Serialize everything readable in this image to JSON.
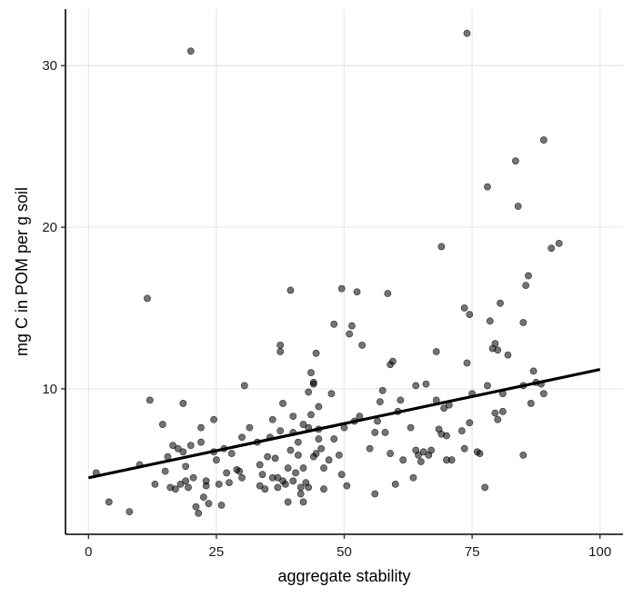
{
  "chart_data": {
    "type": "scatter",
    "xlabel": "aggregate stability",
    "ylabel": "mg C in POM per g soil",
    "xlim": [
      -4.5,
      104.5
    ],
    "ylim": [
      1.0,
      33.5
    ],
    "x_ticks": [
      0,
      25,
      50,
      75,
      100
    ],
    "x_tick_labels": [
      "0",
      "25",
      "50",
      "75",
      "100"
    ],
    "y_ticks": [
      10,
      20,
      30
    ],
    "y_tick_labels": [
      "10",
      "20",
      "30"
    ],
    "grid": true,
    "legend": "none",
    "colors": {
      "points": "#000000",
      "line": "#000000",
      "grid": "#ebebeb"
    },
    "trend_line": {
      "x": [
        0,
        100
      ],
      "y": [
        4.5,
        11.2
      ]
    },
    "points": [
      [
        1.5,
        4.8
      ],
      [
        4,
        3.0
      ],
      [
        8,
        2.4
      ],
      [
        10,
        5.3
      ],
      [
        11.5,
        15.6
      ],
      [
        12,
        9.3
      ],
      [
        13,
        4.1
      ],
      [
        14.5,
        7.8
      ],
      [
        15,
        4.9
      ],
      [
        15.5,
        5.8
      ],
      [
        16,
        3.9
      ],
      [
        16.5,
        6.5
      ],
      [
        17,
        3.8
      ],
      [
        17.5,
        6.3
      ],
      [
        18,
        4.1
      ],
      [
        18.5,
        9.1
      ],
      [
        18.5,
        6.1
      ],
      [
        19,
        5.2
      ],
      [
        19,
        4.3
      ],
      [
        19.5,
        3.9
      ],
      [
        20,
        6.5
      ],
      [
        20,
        30.9
      ],
      [
        20.5,
        4.5
      ],
      [
        21,
        2.7
      ],
      [
        21.5,
        2.3
      ],
      [
        22,
        7.6
      ],
      [
        22,
        6.7
      ],
      [
        22.5,
        3.3
      ],
      [
        23,
        4.3
      ],
      [
        23,
        4.0
      ],
      [
        23.5,
        2.9
      ],
      [
        24.5,
        8.1
      ],
      [
        24.5,
        6.1
      ],
      [
        25,
        5.6
      ],
      [
        25.5,
        4.1
      ],
      [
        26,
        2.8
      ],
      [
        26.5,
        6.3
      ],
      [
        27,
        4.8
      ],
      [
        27.5,
        4.2
      ],
      [
        28,
        6.0
      ],
      [
        29,
        5.0
      ],
      [
        29.5,
        4.9
      ],
      [
        30,
        4.5
      ],
      [
        30,
        7.0
      ],
      [
        30.5,
        10.2
      ],
      [
        31.5,
        7.6
      ],
      [
        33,
        6.7
      ],
      [
        33.5,
        4.0
      ],
      [
        33.5,
        5.3
      ],
      [
        34,
        4.7
      ],
      [
        34.5,
        3.8
      ],
      [
        35,
        5.8
      ],
      [
        35.5,
        7.0
      ],
      [
        36,
        4.5
      ],
      [
        36,
        8.1
      ],
      [
        36.5,
        5.7
      ],
      [
        37,
        3.9
      ],
      [
        37,
        4.5
      ],
      [
        37.5,
        7.4
      ],
      [
        37.5,
        12.3
      ],
      [
        37.5,
        12.7
      ],
      [
        38,
        4.3
      ],
      [
        38,
        9.1
      ],
      [
        38.5,
        4.1
      ],
      [
        39,
        3.0
      ],
      [
        39,
        5.1
      ],
      [
        39.5,
        16.1
      ],
      [
        39.5,
        6.2
      ],
      [
        40,
        8.3
      ],
      [
        40,
        7.3
      ],
      [
        40,
        4.3
      ],
      [
        40.5,
        4.8
      ],
      [
        41,
        6.7
      ],
      [
        41,
        5.9
      ],
      [
        41.5,
        3.5
      ],
      [
        41.5,
        3.9
      ],
      [
        42,
        5.1
      ],
      [
        42,
        7.8
      ],
      [
        42,
        3.0
      ],
      [
        42.5,
        4.2
      ],
      [
        43,
        9.8
      ],
      [
        43,
        7.6
      ],
      [
        43,
        3.9
      ],
      [
        43.5,
        11.0
      ],
      [
        43.5,
        8.4
      ],
      [
        44,
        5.8
      ],
      [
        44,
        10.3
      ],
      [
        44,
        10.4
      ],
      [
        44.5,
        6.0
      ],
      [
        44.5,
        12.2
      ],
      [
        45,
        8.9
      ],
      [
        45,
        6.9
      ],
      [
        45,
        7.5
      ],
      [
        45.5,
        6.3
      ],
      [
        46,
        3.8
      ],
      [
        46,
        5.1
      ],
      [
        47,
        5.6
      ],
      [
        47.5,
        9.7
      ],
      [
        48,
        14.0
      ],
      [
        48,
        6.9
      ],
      [
        49,
        5.9
      ],
      [
        49.5,
        16.2
      ],
      [
        49.5,
        4.7
      ],
      [
        50,
        7.6
      ],
      [
        50.5,
        4.0
      ],
      [
        51,
        13.4
      ],
      [
        51.5,
        13.9
      ],
      [
        52,
        8.0
      ],
      [
        52.5,
        16.0
      ],
      [
        53,
        8.3
      ],
      [
        53.5,
        12.7
      ],
      [
        55,
        6.3
      ],
      [
        56,
        3.5
      ],
      [
        56,
        7.3
      ],
      [
        56.5,
        8.0
      ],
      [
        57,
        9.2
      ],
      [
        57.5,
        9.9
      ],
      [
        58,
        7.3
      ],
      [
        58.5,
        15.9
      ],
      [
        59,
        11.5
      ],
      [
        59,
        6.0
      ],
      [
        59.5,
        11.7
      ],
      [
        60,
        4.1
      ],
      [
        60.5,
        8.6
      ],
      [
        61,
        9.3
      ],
      [
        61.5,
        5.6
      ],
      [
        63,
        7.6
      ],
      [
        63.5,
        4.5
      ],
      [
        64,
        10.2
      ],
      [
        64,
        6.2
      ],
      [
        64.5,
        5.9
      ],
      [
        65,
        5.5
      ],
      [
        65.5,
        6.1
      ],
      [
        66,
        10.3
      ],
      [
        66.5,
        5.9
      ],
      [
        67,
        6.2
      ],
      [
        68,
        9.3
      ],
      [
        68,
        12.3
      ],
      [
        68.5,
        7.5
      ],
      [
        69,
        7.2
      ],
      [
        69,
        18.8
      ],
      [
        69.5,
        8.8
      ],
      [
        70,
        7.1
      ],
      [
        70,
        5.6
      ],
      [
        70.5,
        9.0
      ],
      [
        71,
        5.6
      ],
      [
        73,
        7.4
      ],
      [
        73.5,
        6.3
      ],
      [
        73.5,
        15.0
      ],
      [
        74,
        11.6
      ],
      [
        74,
        32.0
      ],
      [
        74.5,
        7.9
      ],
      [
        74.5,
        14.6
      ],
      [
        75,
        9.7
      ],
      [
        76,
        6.1
      ],
      [
        76.5,
        6.0
      ],
      [
        77.5,
        3.9
      ],
      [
        78,
        10.2
      ],
      [
        78,
        22.5
      ],
      [
        78.5,
        14.2
      ],
      [
        79,
        12.5
      ],
      [
        79.5,
        12.8
      ],
      [
        79.5,
        8.5
      ],
      [
        80,
        8.1
      ],
      [
        80,
        12.4
      ],
      [
        80.5,
        15.3
      ],
      [
        81,
        8.6
      ],
      [
        81,
        9.7
      ],
      [
        82,
        12.1
      ],
      [
        83.5,
        24.1
      ],
      [
        84,
        21.3
      ],
      [
        85,
        5.9
      ],
      [
        85,
        14.1
      ],
      [
        85,
        10.2
      ],
      [
        85.5,
        16.4
      ],
      [
        86,
        17.0
      ],
      [
        86.5,
        9.1
      ],
      [
        87,
        11.1
      ],
      [
        87.5,
        10.4
      ],
      [
        88.5,
        10.3
      ],
      [
        89,
        9.7
      ],
      [
        89,
        25.4
      ],
      [
        90.5,
        18.7
      ],
      [
        92,
        19.0
      ]
    ]
  }
}
